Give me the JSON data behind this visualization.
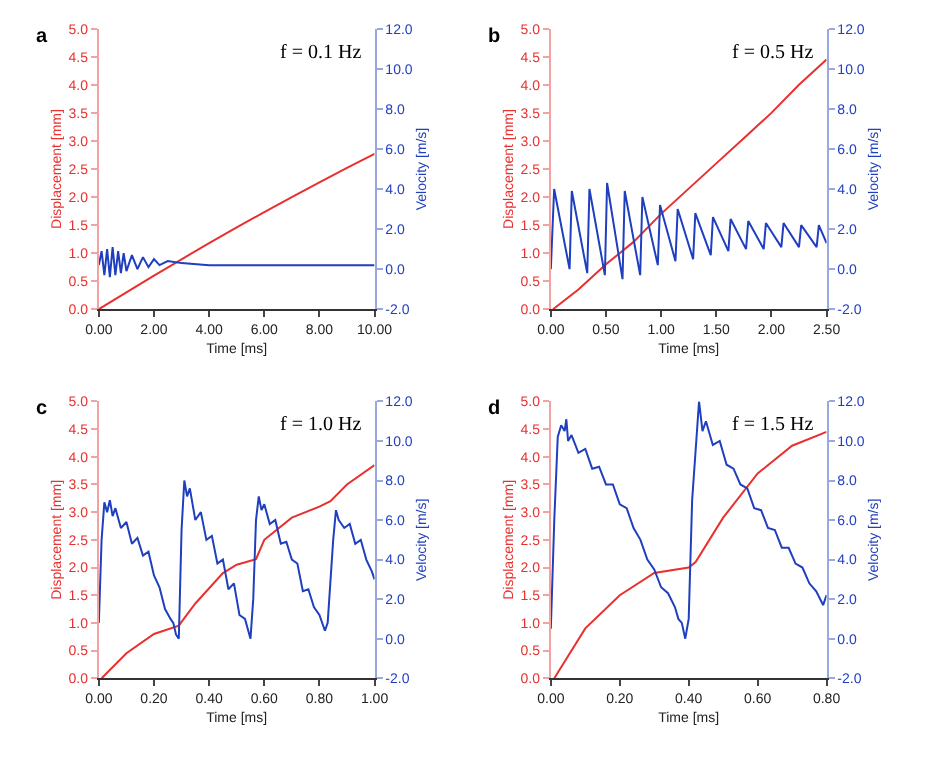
{
  "chart_data": [
    {
      "type": "line",
      "title": "a",
      "xlabel": "Time [ms]",
      "ylabel": "Displacement [mm]",
      "y2label": "Velocity [m/s]",
      "annotations": [
        "f = 0.1 Hz"
      ],
      "xlim": [
        0,
        10
      ],
      "xticks": [
        {
          "value": 0,
          "label": "0.00"
        },
        {
          "value": 2,
          "label": "2.00"
        },
        {
          "value": 4,
          "label": "4.00"
        },
        {
          "value": 6,
          "label": "6.00"
        },
        {
          "value": 8,
          "label": "8.00"
        },
        {
          "value": 10,
          "label": "10.00"
        }
      ],
      "ylim": [
        0,
        5
      ],
      "yticks": [
        {
          "value": 0,
          "label": "0.0"
        },
        {
          "value": 0.5,
          "label": "0.5"
        },
        {
          "value": 1,
          "label": "1.0"
        },
        {
          "value": 1.5,
          "label": "1.5"
        },
        {
          "value": 2,
          "label": "2.0"
        },
        {
          "value": 2.5,
          "label": "2.5"
        },
        {
          "value": 3,
          "label": "3.0"
        },
        {
          "value": 3.5,
          "label": "3.5"
        },
        {
          "value": 4,
          "label": "4.0"
        },
        {
          "value": 4.5,
          "label": "4.5"
        },
        {
          "value": 5,
          "label": "5.0"
        }
      ],
      "y2lim": [
        -2,
        12
      ],
      "y2ticks": [
        {
          "value": -2,
          "label": "-2.0"
        },
        {
          "value": 0,
          "label": "0.0"
        },
        {
          "value": 2,
          "label": "2.0"
        },
        {
          "value": 4,
          "label": "4.0"
        },
        {
          "value": 6,
          "label": "6.0"
        },
        {
          "value": 8,
          "label": "8.0"
        },
        {
          "value": 10,
          "label": "10.0"
        },
        {
          "value": 12,
          "label": "12.0"
        }
      ],
      "series": [
        {
          "color": "#e8302f",
          "x": [
            0,
            1,
            2,
            3,
            4,
            5,
            6,
            7,
            8,
            9,
            10
          ],
          "values": [
            0,
            0.3,
            0.6,
            0.89,
            1.18,
            1.46,
            1.73,
            2.0,
            2.26,
            2.52,
            2.77
          ]
        },
        {
          "color": "#1f3fbf",
          "axis": "y2",
          "x": [
            0,
            0.1,
            0.2,
            0.3,
            0.4,
            0.5,
            0.6,
            0.7,
            0.8,
            0.9,
            1.0,
            1.2,
            1.4,
            1.6,
            1.8,
            2.0,
            2.2,
            2.5,
            3,
            4,
            6,
            8,
            10
          ],
          "values": [
            0.2,
            0.9,
            -0.3,
            1.0,
            -0.4,
            1.1,
            -0.3,
            0.9,
            -0.2,
            0.8,
            -0.1,
            0.7,
            0.0,
            0.6,
            0.1,
            0.5,
            0.2,
            0.4,
            0.3,
            0.2,
            0.2,
            0.2,
            0.2
          ]
        }
      ]
    },
    {
      "type": "line",
      "title": "b",
      "xlabel": "Time [ms]",
      "ylabel": "Displacement [mm]",
      "y2label": "Velocity [m/s]",
      "annotations": [
        "f = 0.5 Hz"
      ],
      "xlim": [
        0,
        2.5
      ],
      "xticks": [
        {
          "value": 0,
          "label": "0.00"
        },
        {
          "value": 0.5,
          "label": "0.50"
        },
        {
          "value": 1,
          "label": "1.00"
        },
        {
          "value": 1.5,
          "label": "1.50"
        },
        {
          "value": 2,
          "label": "2.00"
        },
        {
          "value": 2.5,
          "label": "2.50"
        }
      ],
      "ylim": [
        0,
        5
      ],
      "yticks": [
        {
          "value": 0,
          "label": "0.0"
        },
        {
          "value": 0.5,
          "label": "0.5"
        },
        {
          "value": 1,
          "label": "1.0"
        },
        {
          "value": 1.5,
          "label": "1.5"
        },
        {
          "value": 2,
          "label": "2.0"
        },
        {
          "value": 2.5,
          "label": "2.5"
        },
        {
          "value": 3,
          "label": "3.0"
        },
        {
          "value": 3.5,
          "label": "3.5"
        },
        {
          "value": 4,
          "label": "4.0"
        },
        {
          "value": 4.5,
          "label": "4.5"
        },
        {
          "value": 5,
          "label": "5.0"
        }
      ],
      "y2lim": [
        -2,
        12
      ],
      "y2ticks": [
        {
          "value": -2,
          "label": "-2.0"
        },
        {
          "value": 0,
          "label": "0.0"
        },
        {
          "value": 2,
          "label": "2.0"
        },
        {
          "value": 4,
          "label": "4.0"
        },
        {
          "value": 6,
          "label": "6.0"
        },
        {
          "value": 8,
          "label": "8.0"
        },
        {
          "value": 10,
          "label": "10.0"
        },
        {
          "value": 12,
          "label": "12.0"
        }
      ],
      "series": [
        {
          "color": "#e8302f",
          "x": [
            0.02,
            0.25,
            0.5,
            0.75,
            1.0,
            1.25,
            1.5,
            1.75,
            2.0,
            2.25,
            2.5
          ],
          "values": [
            0,
            0.35,
            0.8,
            1.2,
            1.7,
            2.15,
            2.6,
            3.05,
            3.5,
            4.0,
            4.45
          ]
        },
        {
          "color": "#1f3fbf",
          "axis": "y2",
          "x": [
            0,
            0.03,
            0.17,
            0.19,
            0.33,
            0.35,
            0.49,
            0.51,
            0.65,
            0.67,
            0.81,
            0.83,
            0.97,
            0.99,
            1.13,
            1.15,
            1.29,
            1.31,
            1.45,
            1.47,
            1.61,
            1.63,
            1.77,
            1.79,
            1.93,
            1.95,
            2.09,
            2.11,
            2.25,
            2.27,
            2.41,
            2.43,
            2.5
          ],
          "values": [
            0,
            4.0,
            0.0,
            3.9,
            -0.2,
            4.0,
            -0.3,
            4.3,
            -0.5,
            3.9,
            -0.3,
            3.6,
            0.2,
            3.2,
            0.4,
            3.0,
            0.5,
            2.8,
            0.7,
            2.6,
            0.9,
            2.5,
            1.0,
            2.4,
            1.0,
            2.3,
            1.1,
            2.3,
            1.1,
            2.2,
            1.1,
            2.2,
            1.3
          ]
        }
      ]
    },
    {
      "type": "line",
      "title": "c",
      "xlabel": "Time [ms]",
      "ylabel": "Displacement [mm]",
      "y2label": "Velocity [m/s]",
      "annotations": [
        "f = 1.0 Hz"
      ],
      "xlim": [
        0,
        1
      ],
      "xticks": [
        {
          "value": 0,
          "label": "0.00"
        },
        {
          "value": 0.2,
          "label": "0.20"
        },
        {
          "value": 0.4,
          "label": "0.40"
        },
        {
          "value": 0.6,
          "label": "0.60"
        },
        {
          "value": 0.8,
          "label": "0.80"
        },
        {
          "value": 1,
          "label": "1.00"
        }
      ],
      "ylim": [
        0,
        5
      ],
      "yticks": [
        {
          "value": 0,
          "label": "0.0"
        },
        {
          "value": 0.5,
          "label": "0.5"
        },
        {
          "value": 1,
          "label": "1.0"
        },
        {
          "value": 1.5,
          "label": "1.5"
        },
        {
          "value": 2,
          "label": "2.0"
        },
        {
          "value": 2.5,
          "label": "2.5"
        },
        {
          "value": 3,
          "label": "3.0"
        },
        {
          "value": 3.5,
          "label": "3.5"
        },
        {
          "value": 4,
          "label": "4.0"
        },
        {
          "value": 4.5,
          "label": "4.5"
        },
        {
          "value": 5,
          "label": "5.0"
        }
      ],
      "y2lim": [
        -2,
        12
      ],
      "y2ticks": [
        {
          "value": -2,
          "label": "-2.0"
        },
        {
          "value": 0,
          "label": "0.0"
        },
        {
          "value": 2,
          "label": "2.0"
        },
        {
          "value": 4,
          "label": "4.0"
        },
        {
          "value": 6,
          "label": "6.0"
        },
        {
          "value": 8,
          "label": "8.0"
        },
        {
          "value": 10,
          "label": "10.0"
        },
        {
          "value": 12,
          "label": "12.0"
        }
      ],
      "series": [
        {
          "color": "#e8302f",
          "x": [
            0.01,
            0.1,
            0.2,
            0.29,
            0.35,
            0.45,
            0.5,
            0.57,
            0.6,
            0.7,
            0.8,
            0.84,
            0.9,
            1.0
          ],
          "values": [
            0,
            0.45,
            0.8,
            0.95,
            1.35,
            1.9,
            2.05,
            2.15,
            2.5,
            2.9,
            3.1,
            3.2,
            3.5,
            3.85
          ]
        },
        {
          "color": "#1f3fbf",
          "axis": "y2",
          "x": [
            0,
            0.01,
            0.02,
            0.03,
            0.04,
            0.05,
            0.06,
            0.08,
            0.1,
            0.12,
            0.14,
            0.16,
            0.18,
            0.2,
            0.22,
            0.24,
            0.26,
            0.27,
            0.28,
            0.29,
            0.3,
            0.31,
            0.32,
            0.33,
            0.35,
            0.37,
            0.39,
            0.41,
            0.43,
            0.45,
            0.47,
            0.49,
            0.51,
            0.53,
            0.55,
            0.56,
            0.57,
            0.58,
            0.59,
            0.6,
            0.62,
            0.64,
            0.66,
            0.68,
            0.7,
            0.72,
            0.74,
            0.76,
            0.78,
            0.8,
            0.82,
            0.83,
            0.85,
            0.86,
            0.87,
            0.89,
            0.91,
            0.93,
            0.95,
            0.97,
            0.99,
            1.0
          ],
          "values": [
            0.8,
            5,
            6.9,
            6.4,
            7.0,
            6.2,
            6.6,
            5.6,
            5.9,
            4.8,
            5.1,
            4.2,
            4.4,
            3.2,
            2.6,
            1.5,
            1.0,
            0.8,
            0.2,
            0.0,
            5.5,
            8.0,
            7.2,
            7.6,
            6.0,
            6.4,
            5.0,
            5.2,
            3.8,
            4.0,
            2.5,
            2.8,
            1.2,
            1.0,
            0.0,
            2.0,
            6.0,
            7.2,
            6.5,
            6.8,
            5.8,
            6.0,
            4.8,
            4.9,
            4.0,
            3.8,
            2.4,
            2.5,
            1.6,
            1.2,
            0.4,
            0.8,
            5.0,
            6.5,
            6.0,
            5.6,
            5.8,
            4.8,
            5.0,
            4.0,
            3.4,
            3.0
          ]
        }
      ]
    },
    {
      "type": "line",
      "title": "d",
      "xlabel": "Time [ms]",
      "ylabel": "Displacement [mm]",
      "y2label": "Velocity [m/s]",
      "annotations": [
        "f = 1.5 Hz"
      ],
      "xlim": [
        0,
        0.8
      ],
      "xticks": [
        {
          "value": 0,
          "label": "0.00"
        },
        {
          "value": 0.2,
          "label": "0.20"
        },
        {
          "value": 0.4,
          "label": "0.40"
        },
        {
          "value": 0.6,
          "label": "0.60"
        },
        {
          "value": 0.8,
          "label": "0.80"
        }
      ],
      "ylim": [
        0,
        5
      ],
      "yticks": [
        {
          "value": 0,
          "label": "0.0"
        },
        {
          "value": 0.5,
          "label": "0.5"
        },
        {
          "value": 1,
          "label": "1.0"
        },
        {
          "value": 1.5,
          "label": "1.5"
        },
        {
          "value": 2,
          "label": "2.0"
        },
        {
          "value": 2.5,
          "label": "2.5"
        },
        {
          "value": 3,
          "label": "3.0"
        },
        {
          "value": 3.5,
          "label": "3.5"
        },
        {
          "value": 4,
          "label": "4.0"
        },
        {
          "value": 4.5,
          "label": "4.5"
        },
        {
          "value": 5,
          "label": "5.0"
        }
      ],
      "y2lim": [
        -2,
        12
      ],
      "y2ticks": [
        {
          "value": -2,
          "label": "-2.0"
        },
        {
          "value": 0,
          "label": "0.0"
        },
        {
          "value": 2,
          "label": "2.0"
        },
        {
          "value": 4,
          "label": "4.0"
        },
        {
          "value": 6,
          "label": "6.0"
        },
        {
          "value": 8,
          "label": "8.0"
        },
        {
          "value": 10,
          "label": "10.0"
        },
        {
          "value": 12,
          "label": "12.0"
        }
      ],
      "series": [
        {
          "color": "#e8302f",
          "x": [
            0.01,
            0.1,
            0.2,
            0.3,
            0.4,
            0.42,
            0.5,
            0.6,
            0.7,
            0.8
          ],
          "values": [
            0,
            0.9,
            1.5,
            1.9,
            2.0,
            2.1,
            2.9,
            3.7,
            4.2,
            4.45
          ]
        },
        {
          "color": "#1f3fbf",
          "axis": "y2",
          "x": [
            0,
            0.01,
            0.02,
            0.03,
            0.04,
            0.045,
            0.05,
            0.06,
            0.08,
            0.1,
            0.12,
            0.14,
            0.16,
            0.18,
            0.2,
            0.22,
            0.24,
            0.26,
            0.28,
            0.3,
            0.32,
            0.34,
            0.36,
            0.37,
            0.38,
            0.39,
            0.4,
            0.41,
            0.43,
            0.44,
            0.45,
            0.47,
            0.49,
            0.51,
            0.53,
            0.55,
            0.57,
            0.59,
            0.61,
            0.63,
            0.65,
            0.67,
            0.69,
            0.71,
            0.73,
            0.75,
            0.77,
            0.79,
            0.8
          ],
          "values": [
            0.5,
            6,
            10.2,
            10.8,
            10.5,
            11.1,
            10.0,
            10.3,
            9.4,
            9.6,
            8.6,
            8.7,
            7.8,
            7.8,
            6.8,
            6.6,
            5.6,
            5.0,
            4.0,
            3.5,
            2.6,
            2.3,
            1.6,
            1.0,
            0.8,
            0.0,
            1.0,
            7.0,
            12.0,
            10.5,
            11.0,
            9.8,
            10.0,
            8.8,
            8.6,
            7.8,
            7.6,
            6.6,
            6.5,
            5.6,
            5.5,
            4.6,
            4.6,
            3.8,
            3.6,
            2.8,
            2.4,
            1.7,
            2.2
          ]
        }
      ]
    }
  ]
}
